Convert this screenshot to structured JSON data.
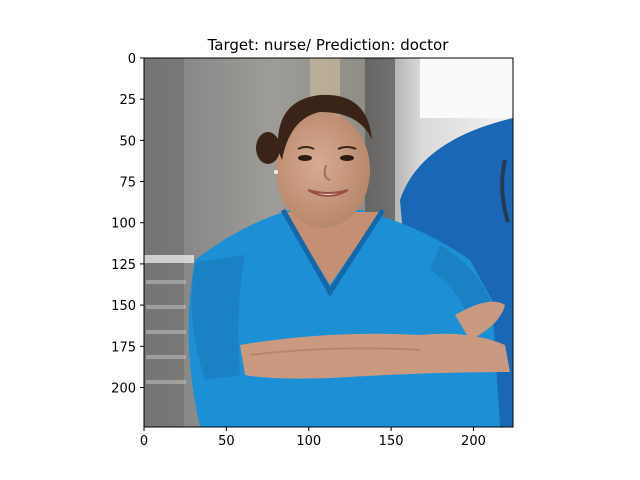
{
  "chart_data": {
    "type": "image",
    "title": "Target: nurse/ Prediction: doctor",
    "xlabel": "",
    "ylabel": "",
    "xlim": [
      0,
      224
    ],
    "ylim": [
      224,
      0
    ],
    "x_ticks": [
      0,
      50,
      100,
      150,
      200
    ],
    "y_ticks": [
      0,
      25,
      50,
      75,
      100,
      125,
      150,
      175,
      200
    ],
    "grid": false,
    "image_content": {
      "subject": "smiling woman with dark hair tied back, wearing blue scrubs, arms crossed",
      "secondary": "second person in blue scrubs at the right edge, stethoscope tubing visible",
      "background": "blurred hospital corridor with grey walls and bright window"
    }
  },
  "colors": {
    "scrubs": "#1d8fd4",
    "scrubs_dark": "#1468a8",
    "skin": "#c99a80",
    "hair": "#3a2418",
    "background_wall": "#9a9a9a",
    "window": "#f2f2f2"
  }
}
